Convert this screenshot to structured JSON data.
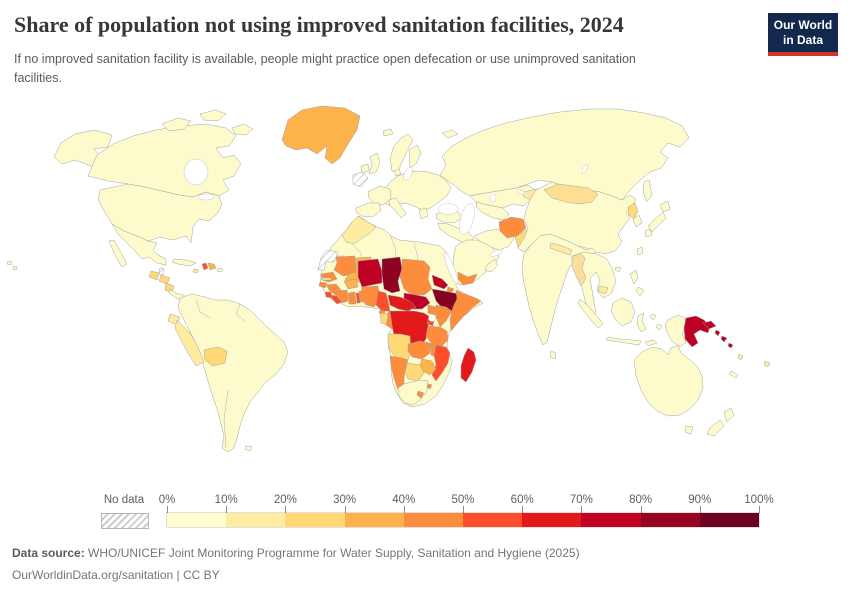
{
  "header": {
    "title": "Share of population not using improved sanitation facilities, 2024",
    "subtitle": "If no improved sanitation facility is available, people might practice open defecation or use unimproved sanitation facilities.",
    "logo": {
      "line1": "Our World",
      "line2": "in Data"
    }
  },
  "legend": {
    "no_data_label": "No data",
    "tick_labels": [
      "0%",
      "10%",
      "20%",
      "30%",
      "40%",
      "50%",
      "60%",
      "70%",
      "80%",
      "90%",
      "100%"
    ],
    "bin_colors": [
      "#FFFCCD",
      "#FEEDA1",
      "#FED976",
      "#FEB24C",
      "#FD8D3C",
      "#FC4E2A",
      "#E31A1C",
      "#C00225",
      "#950222",
      "#6B0020"
    ]
  },
  "footer": {
    "source_prefix": "Data source:",
    "source_text": " WHO/UNICEF Joint Monitoring Programme for Water Supply, Sanitation and Hygiene (2025)",
    "link": "OurWorldinData.org/sanitation",
    "license": " | CC BY"
  },
  "map": {
    "default_fill": "#FDFACC",
    "regions": {
      "greenland": "#FEB24C",
      "iceland": "url(#hatch)",
      "western-sahara": "url(#hatch)",
      "belize": "url(#hatch)",
      "morocco": "#FEEDA1",
      "guatemala": "#FED976",
      "honduras": "#FED976",
      "nicaragua": "#FED976",
      "haiti": "#FC4E2A",
      "dominican-republic": "#FEB24C",
      "jamaica": "#FEEDA1",
      "ecuador": "#FEEDA1",
      "peru": "#FEEDA1",
      "bolivia": "#FED976",
      "mauritania": "#FD8D3C",
      "mali": "#FEB24C",
      "senegal": "#FD8D3C",
      "gambia": "#FEEDA1",
      "guinea-bissau": "#FD8D3C",
      "guinea": "#FD8D3C",
      "sierra-leone": "#FC4E2A",
      "liberia": "#FC4E2A",
      "cote-divoire": "#FD8D3C",
      "ghana": "#FD8D3C",
      "togo": "#FC4E2A",
      "benin": "#FD8D3C",
      "burkina-faso": "#FEB24C",
      "niger": "#C00225",
      "nigeria": "#FD8D3C",
      "chad": "#8F0222",
      "sudan": "#FD8D3C",
      "eritrea": "#C00225",
      "djibouti": "#FD8D3C",
      "ethiopia": "#85031F",
      "somalia": "#FD8D3C",
      "south-sudan": "#BD0026",
      "central-african-republic": "#E31A1C",
      "cameroon": "#FC4E2A",
      "equatorial-guinea": "#FD8D3C",
      "gabon": "#FED976",
      "congo": "#FD8D3C",
      "drc": "#E31A1C",
      "uganda": "#FD8D3C",
      "kenya": "#FD8D3C",
      "rwanda-burundi": "#FC4E2A",
      "tanzania": "#FD8D3C",
      "angola": "#FED976",
      "zambia": "#FD8D3C",
      "malawi": "#FD8D3C",
      "mozambique": "#FC4E2A",
      "zimbabwe": "#FEB24C",
      "botswana": "#FED976",
      "namibia": "#FD8D3C",
      "lesotho": "#FD8D3C",
      "eswatini": "#FD8D3C",
      "madagascar": "#E31A1C",
      "yemen": "#FD8D3C",
      "afghanistan": "#FD8D3C",
      "pakistan": "#FED976",
      "nepal": "#FEE9A6",
      "myanmar": "#FBDE9B",
      "cambodia": "#FEEDA1",
      "mongolia": "#FCDF90",
      "kyrgyzstan-tajikistan": "#FEE9A6",
      "north-korea": "#FED976",
      "papua-new-guinea": "#BD0026",
      "new-britain": "#BD0026",
      "bougainville": "#BD0026",
      "solomon-islands-1": "#BD0026",
      "solomon-islands-2": "#BD0026",
      "vanuatu": "#FEEDA1",
      "fiji": "#FEEDA1"
    }
  },
  "chart_data": {
    "type": "choropleth",
    "title": "Share of population not using improved sanitation facilities, 2024",
    "unit": "% of population",
    "year": 2024,
    "legend_position": "bottom",
    "bins": [
      {
        "range": "0-10%",
        "color": "#FFFCCD"
      },
      {
        "range": "10-20%",
        "color": "#FEEDA1"
      },
      {
        "range": "20-30%",
        "color": "#FED976"
      },
      {
        "range": "30-40%",
        "color": "#FEB24C"
      },
      {
        "range": "40-50%",
        "color": "#FD8D3C"
      },
      {
        "range": "50-60%",
        "color": "#FC4E2A"
      },
      {
        "range": "60-70%",
        "color": "#E31A1C"
      },
      {
        "range": "70-80%",
        "color": "#C00225"
      },
      {
        "range": "80-90%",
        "color": "#950222"
      },
      {
        "range": "90-100%",
        "color": "#6B0020"
      }
    ],
    "no_data_countries": [
      "Western Sahara",
      "Belize",
      "Iceland"
    ],
    "estimated_values_by_country": {
      "Chad": "80-90%",
      "Ethiopia": "80-90%",
      "Niger": "70-80%",
      "South Sudan": "70-80%",
      "Eritrea": "70-80%",
      "Papua New Guinea": "70-80%",
      "Solomon Islands": "70-80%",
      "Madagascar": "60-70%",
      "DR Congo": "60-70%",
      "Central African Republic": "60-70%",
      "Sierra Leone": "50-60%",
      "Liberia": "50-60%",
      "Togo": "50-60%",
      "Cameroon": "50-60%",
      "Mozambique": "50-60%",
      "Haiti": "50-60%",
      "Burundi": "50-60%",
      "Mauritania": "40-50%",
      "Senegal": "40-50%",
      "Guinea": "40-50%",
      "Guinea-Bissau": "40-50%",
      "Côte d'Ivoire": "40-50%",
      "Ghana": "40-50%",
      "Benin": "40-50%",
      "Nigeria": "40-50%",
      "Sudan": "40-50%",
      "Somalia": "40-50%",
      "Djibouti": "40-50%",
      "Republic of the Congo": "40-50%",
      "Uganda": "40-50%",
      "Kenya": "40-50%",
      "Tanzania": "40-50%",
      "Zambia": "40-50%",
      "Malawi": "40-50%",
      "Namibia": "40-50%",
      "Lesotho": "40-50%",
      "Yemen": "40-50%",
      "Afghanistan": "40-50%",
      "Greenland": "30-40%",
      "Mali": "30-40%",
      "Burkina Faso": "30-40%",
      "Zimbabwe": "30-40%",
      "Dominican Republic": "30-40%",
      "Gabon": "20-30%",
      "Angola": "20-30%",
      "Botswana": "20-30%",
      "Pakistan": "20-30%",
      "Guatemala": "20-30%",
      "Honduras": "20-30%",
      "Nicaragua": "20-30%",
      "North Korea": "20-30%",
      "Bolivia": "20-30%",
      "Mongolia": "10-20%",
      "Morocco": "10-20%",
      "Peru": "10-20%",
      "Ecuador": "10-20%",
      "Myanmar": "10-20%",
      "Nepal": "10-20%",
      "Cambodia": "10-20%",
      "Kyrgyzstan": "10-20%",
      "Tajikistan": "10-20%",
      "Jamaica": "10-20%",
      "Fiji": "10-20%",
      "Vanuatu": "10-20%",
      "United States": "0-10%",
      "Canada": "0-10%",
      "Brazil": "0-10%",
      "Russia": "0-10%",
      "China": "0-10%",
      "India": "0-10%",
      "Australia": "0-10%",
      "South Africa": "0-10%",
      "Saudi Arabia": "0-10%",
      "Japan": "0-10%",
      "Indonesia": "0-10%",
      "Most of Europe": "0-10%"
    }
  }
}
